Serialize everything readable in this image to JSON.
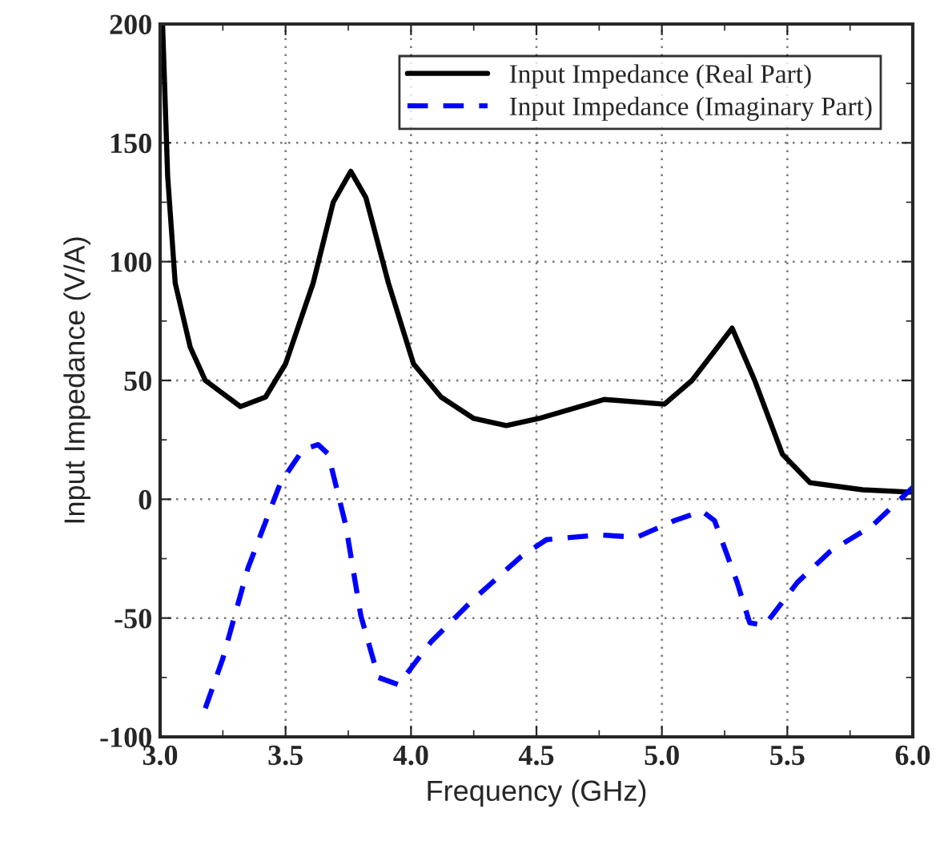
{
  "chart_data": {
    "type": "line",
    "xlabel": "Frequency (GHz)",
    "ylabel": "Input Impedance (V/A)",
    "xlim": [
      3.0,
      6.0
    ],
    "ylim": [
      -100,
      200
    ],
    "xticks": [
      {
        "value": 3.0,
        "label": "3.0"
      },
      {
        "value": 3.5,
        "label": "3.5"
      },
      {
        "value": 4.0,
        "label": "4.0"
      },
      {
        "value": 4.5,
        "label": "4.5"
      },
      {
        "value": 5.0,
        "label": "5.0"
      },
      {
        "value": 5.5,
        "label": "5.5"
      },
      {
        "value": 6.0,
        "label": "6.0"
      }
    ],
    "yticks": [
      -100,
      -50,
      0,
      50,
      100,
      150,
      200
    ],
    "grid": true,
    "legend": "top right",
    "marker": "none",
    "series": [
      {
        "name": "Input Impedance (Real Part)",
        "color": "#000000",
        "line_style": "solid",
        "x": [
          3.01,
          3.03,
          3.06,
          3.12,
          3.18,
          3.32,
          3.42,
          3.5,
          3.61,
          3.69,
          3.76,
          3.82,
          3.91,
          4.01,
          4.12,
          4.25,
          4.38,
          4.51,
          4.77,
          5.01,
          5.12,
          5.28,
          5.37,
          5.48,
          5.59,
          5.8,
          5.99
        ],
        "values": [
          199,
          136,
          91,
          64,
          50,
          39,
          43,
          57,
          91,
          125,
          138,
          127,
          91,
          57,
          43,
          34,
          31,
          34,
          42,
          40,
          50,
          72,
          50,
          19,
          7,
          4,
          3
        ]
      },
      {
        "name": "Input Impedance (Imaginary Part)",
        "color": "#0000ff",
        "line_style": "dashed",
        "x": [
          3.18,
          3.25,
          3.35,
          3.48,
          3.57,
          3.63,
          3.67,
          3.74,
          3.8,
          3.87,
          3.95,
          4.08,
          4.25,
          4.44,
          4.54,
          4.75,
          4.9,
          5.05,
          5.16,
          5.21,
          5.3,
          5.35,
          5.41,
          5.54,
          5.67,
          5.84,
          6.0
        ],
        "values": [
          -88,
          -67,
          -29,
          7,
          21,
          23,
          19,
          -11,
          -49,
          -75,
          -78,
          -60,
          -42,
          -24,
          -17,
          -15,
          -16,
          -9,
          -5,
          -9,
          -35,
          -52,
          -53,
          -35,
          -22,
          -11,
          5
        ]
      }
    ]
  }
}
